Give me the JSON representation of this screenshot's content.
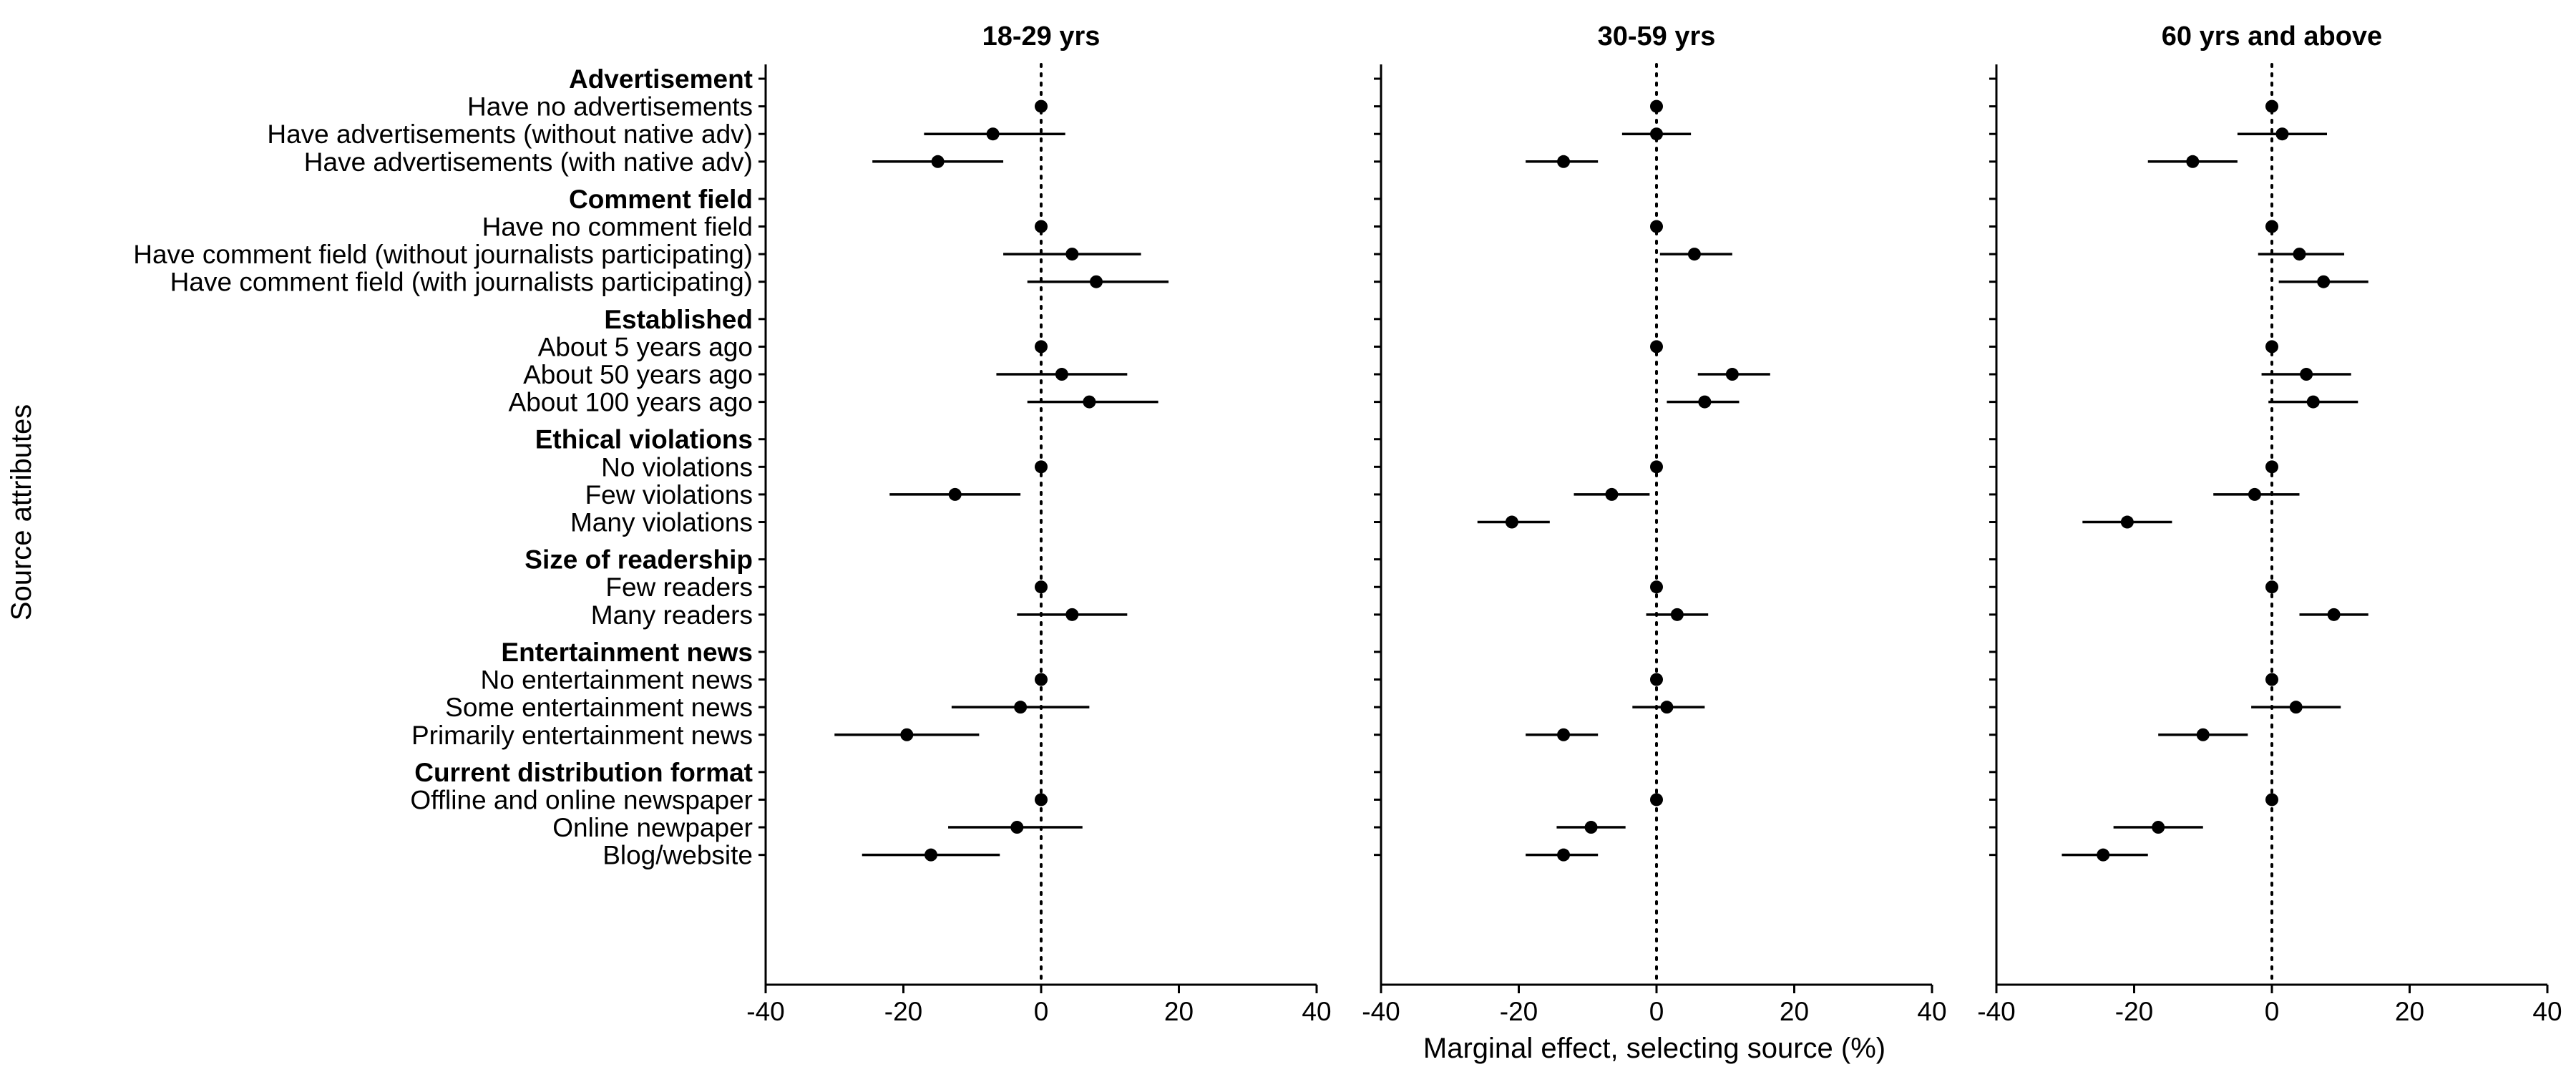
{
  "chart_data": {
    "type": "forest",
    "ylabel": "Source attributes",
    "xlabel": "Marginal effect, selecting source (%)",
    "xlim": [
      -40,
      40
    ],
    "xticks": [
      -40,
      -20,
      0,
      20,
      40
    ],
    "xtick_labels": [
      "-40",
      "-20",
      "0",
      "20",
      "40"
    ],
    "reference_line": 0,
    "grid": false,
    "panels": [
      {
        "title": "18-29 yrs",
        "groups": [
          {
            "name": "Advertisement",
            "items": [
              {
                "label": "Have no advertisements",
                "estimate": 0,
                "lower": 0,
                "upper": 0
              },
              {
                "label": "Have advertisements (without native adv)",
                "estimate": -7,
                "lower": -17,
                "upper": 3.5
              },
              {
                "label": "Have advertisements (with native adv)",
                "estimate": -15,
                "lower": -24.5,
                "upper": -5.5
              }
            ]
          },
          {
            "name": "Comment field",
            "items": [
              {
                "label": "Have no comment field",
                "estimate": 0,
                "lower": 0,
                "upper": 0
              },
              {
                "label": "Have comment field (without journalists participating)",
                "estimate": 4.5,
                "lower": -5.5,
                "upper": 14.5
              },
              {
                "label": "Have comment field (with journalists participating)",
                "estimate": 8,
                "lower": -2,
                "upper": 18.5
              }
            ]
          },
          {
            "name": "Established",
            "items": [
              {
                "label": "About 5 years ago",
                "estimate": 0,
                "lower": 0,
                "upper": 0
              },
              {
                "label": "About 50 years ago",
                "estimate": 3,
                "lower": -6.5,
                "upper": 12.5
              },
              {
                "label": "About 100 years ago",
                "estimate": 7,
                "lower": -2,
                "upper": 17
              }
            ]
          },
          {
            "name": "Ethical violations",
            "items": [
              {
                "label": "No violations",
                "estimate": 0,
                "lower": 0,
                "upper": 0
              },
              {
                "label": "Few violations",
                "estimate": -12.5,
                "lower": -22,
                "upper": -3
              }
            ]
          },
          {
            "name": "Size of readership",
            "items": [
              {
                "label": "Few readers",
                "estimate": 0,
                "lower": 0,
                "upper": 0
              },
              {
                "label": "Many readers",
                "estimate": 4.5,
                "lower": -3.5,
                "upper": 12.5
              }
            ]
          },
          {
            "name": "Entertainment news",
            "items": [
              {
                "label": "No entertainment news",
                "estimate": 0,
                "lower": 0,
                "upper": 0
              },
              {
                "label": "Some entertainment news",
                "estimate": -3,
                "lower": -13,
                "upper": 7
              },
              {
                "label": "Primarily entertainment news",
                "estimate": -19.5,
                "lower": -30,
                "upper": -9
              }
            ]
          },
          {
            "name": "Current distribution format",
            "items": [
              {
                "label": "Offline and online newspaper",
                "estimate": 0,
                "lower": 0,
                "upper": 0
              },
              {
                "label": "Online newpaper",
                "estimate": -3.5,
                "lower": -13.5,
                "upper": 6
              },
              {
                "label": "Blog/website",
                "estimate": -16,
                "lower": -26,
                "upper": -6
              }
            ]
          }
        ]
      },
      {
        "title": "30-59 yrs",
        "groups": [
          {
            "name": "Advertisement",
            "items": [
              {
                "label": "Have no advertisements",
                "estimate": 0,
                "lower": 0,
                "upper": 0
              },
              {
                "label": "Have advertisements (without native adv)",
                "estimate": 0,
                "lower": -5,
                "upper": 5
              },
              {
                "label": "Have advertisements (with native adv)",
                "estimate": -13.5,
                "lower": -19,
                "upper": -8.5
              }
            ]
          },
          {
            "name": "Comment field",
            "items": [
              {
                "label": "Have no comment field",
                "estimate": 0,
                "lower": 0,
                "upper": 0
              },
              {
                "label": "Have comment field (without journalists participating)",
                "estimate": 5.5,
                "lower": 0.5,
                "upper": 11
              }
            ]
          },
          {
            "name": "Established",
            "items": [
              {
                "label": "About 5 years ago",
                "estimate": 0,
                "lower": 0,
                "upper": 0
              },
              {
                "label": "About 50 years ago",
                "estimate": 11,
                "lower": 6,
                "upper": 16.5
              },
              {
                "label": "About 100 years ago",
                "estimate": 7,
                "lower": 1.5,
                "upper": 12
              }
            ]
          },
          {
            "name": "Ethical violations",
            "items": [
              {
                "label": "No violations",
                "estimate": 0,
                "lower": 0,
                "upper": 0
              },
              {
                "label": "Few violations",
                "estimate": -6.5,
                "lower": -12,
                "upper": -1
              },
              {
                "label": "Many violations",
                "estimate": -21,
                "lower": -26,
                "upper": -15.5
              }
            ]
          },
          {
            "name": "Size of readership",
            "items": [
              {
                "label": "Few readers",
                "estimate": 0,
                "lower": 0,
                "upper": 0
              },
              {
                "label": "Many readers",
                "estimate": 3,
                "lower": -1.5,
                "upper": 7.5
              }
            ]
          },
          {
            "name": "Entertainment news",
            "items": [
              {
                "label": "No entertainment news",
                "estimate": 0,
                "lower": 0,
                "upper": 0
              },
              {
                "label": "Some entertainment news",
                "estimate": 1.5,
                "lower": -3.5,
                "upper": 7
              },
              {
                "label": "Primarily entertainment news",
                "estimate": -13.5,
                "lower": -19,
                "upper": -8.5
              }
            ]
          },
          {
            "name": "Current distribution format",
            "items": [
              {
                "label": "Offline and online newspaper",
                "estimate": 0,
                "lower": 0,
                "upper": 0
              },
              {
                "label": "Online newpaper",
                "estimate": -9.5,
                "lower": -14.5,
                "upper": -4.5
              },
              {
                "label": "Blog/website",
                "estimate": -13.5,
                "lower": -19,
                "upper": -8.5
              }
            ]
          }
        ]
      },
      {
        "title": "60 yrs and above",
        "groups": [
          {
            "name": "Advertisement",
            "items": [
              {
                "label": "Have no advertisements",
                "estimate": 0,
                "lower": 0,
                "upper": 0
              },
              {
                "label": "Have advertisements (without native adv)",
                "estimate": 1.5,
                "lower": -5,
                "upper": 8
              },
              {
                "label": "Have advertisements (with native adv)",
                "estimate": -11.5,
                "lower": -18,
                "upper": -5
              }
            ]
          },
          {
            "name": "Comment field",
            "items": [
              {
                "label": "Have no comment field",
                "estimate": 0,
                "lower": 0,
                "upper": 0
              },
              {
                "label": "Have comment field (without journalists participating)",
                "estimate": 4,
                "lower": -2,
                "upper": 10.5
              },
              {
                "label": "Have comment field (with journalists participating)",
                "estimate": 7.5,
                "lower": 1,
                "upper": 14
              }
            ]
          },
          {
            "name": "Established",
            "items": [
              {
                "label": "About 5 years ago",
                "estimate": 0,
                "lower": 0,
                "upper": 0
              },
              {
                "label": "About 50 years ago",
                "estimate": 5,
                "lower": -1.5,
                "upper": 11.5
              },
              {
                "label": "About 100 years ago",
                "estimate": 6,
                "lower": -0.5,
                "upper": 12.5
              }
            ]
          },
          {
            "name": "Ethical violations",
            "items": [
              {
                "label": "No violations",
                "estimate": 0,
                "lower": 0,
                "upper": 0
              },
              {
                "label": "Few violations",
                "estimate": -2.5,
                "lower": -8.5,
                "upper": 4
              },
              {
                "label": "Many violations",
                "estimate": -21,
                "lower": -27.5,
                "upper": -14.5
              }
            ]
          },
          {
            "name": "Size of readership",
            "items": [
              {
                "label": "Few readers",
                "estimate": 0,
                "lower": 0,
                "upper": 0
              },
              {
                "label": "Many readers",
                "estimate": 9,
                "lower": 4,
                "upper": 14
              }
            ]
          },
          {
            "name": "Entertainment news",
            "items": [
              {
                "label": "No entertainment news",
                "estimate": 0,
                "lower": 0,
                "upper": 0
              },
              {
                "label": "Some entertainment news",
                "estimate": 3.5,
                "lower": -3,
                "upper": 10
              },
              {
                "label": "Primarily entertainment news",
                "estimate": -10,
                "lower": -16.5,
                "upper": -3.5
              }
            ]
          },
          {
            "name": "Current distribution format",
            "items": [
              {
                "label": "Offline and online newspaper",
                "estimate": 0,
                "lower": 0,
                "upper": 0
              },
              {
                "label": "Online newpaper",
                "estimate": -16.5,
                "lower": -23,
                "upper": -10
              },
              {
                "label": "Blog/website",
                "estimate": -24.5,
                "lower": -30.5,
                "upper": -18
              }
            ]
          }
        ]
      }
    ]
  }
}
